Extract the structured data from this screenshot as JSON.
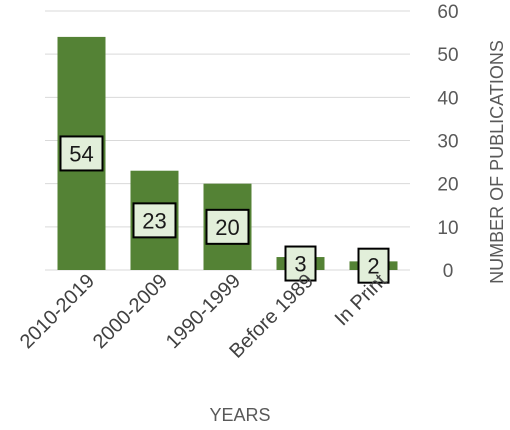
{
  "chart_data": {
    "type": "bar",
    "categories": [
      "2010-2019",
      "2000-2009",
      "1990-1999",
      "Before 1989",
      "In Print"
    ],
    "values": [
      54,
      23,
      20,
      3,
      2
    ],
    "data_labels": [
      "54",
      "23",
      "20",
      "3",
      "2"
    ],
    "title": "",
    "xlabel": "YEARS",
    "ylabel": "NUMBER OF PUBLICATIONS",
    "ylim": [
      0,
      60
    ],
    "yticks": [
      0,
      10,
      20,
      30,
      40,
      50,
      60
    ],
    "y_axis_side": "right",
    "grid": true,
    "legend": "none",
    "bar_color": "#548235",
    "label_box_fill": "#e2efda",
    "label_box_stroke": "#000000",
    "grid_color": "#d9d9d9"
  }
}
